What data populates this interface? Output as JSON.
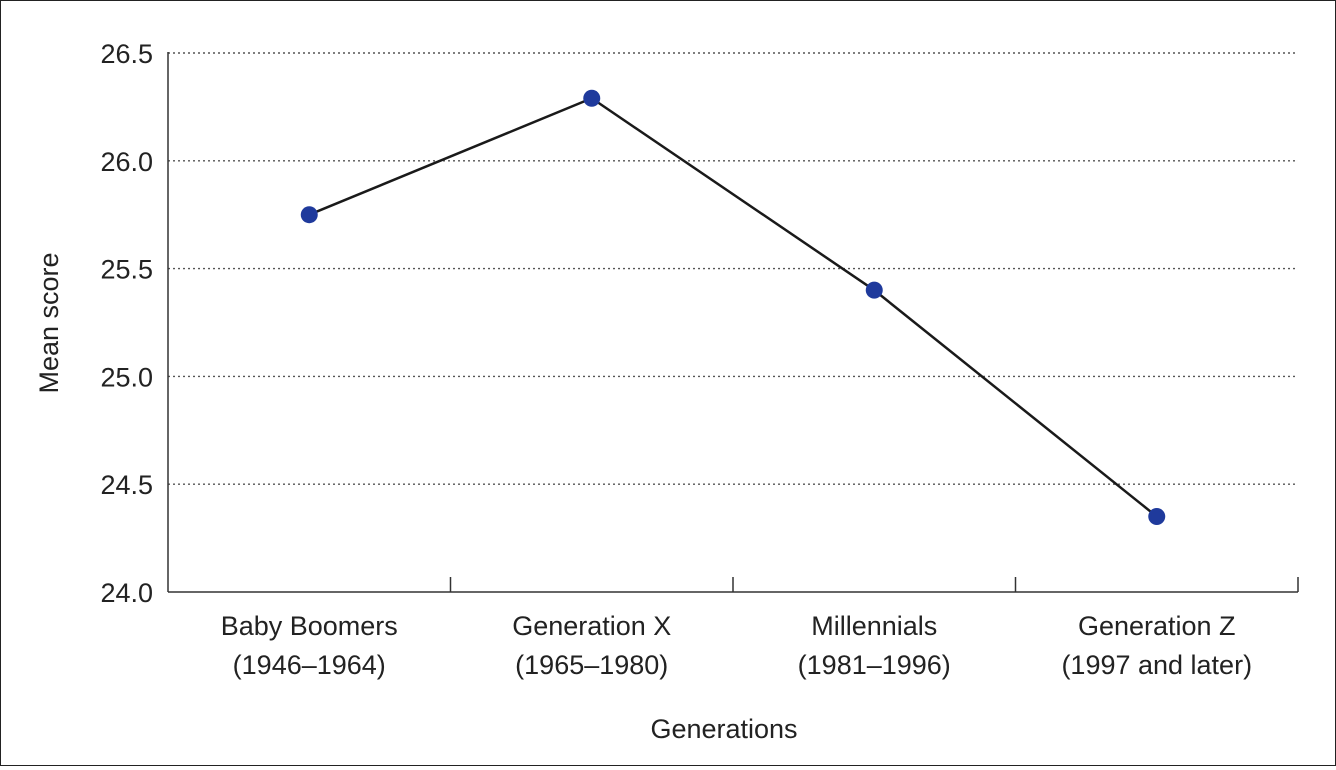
{
  "chart_data": {
    "type": "line",
    "title": "",
    "xlabel": "Generations",
    "ylabel": "Mean score",
    "categories": [
      {
        "line1": "Baby Boomers",
        "line2": "(1946–1964)"
      },
      {
        "line1": "Generation X",
        "line2": "(1965–1980)"
      },
      {
        "line1": "Millennials",
        "line2": "(1981–1996)"
      },
      {
        "line1": "Generation Z",
        "line2": "(1997 and later)"
      }
    ],
    "series": [
      {
        "values": [
          25.75,
          26.29,
          25.4,
          24.35
        ]
      }
    ],
    "ylim": [
      24.0,
      26.5
    ],
    "yticks": [
      "24.0",
      "24.5",
      "25.0",
      "25.5",
      "26.0",
      "26.5"
    ],
    "grid": "horizontal-dotted",
    "colors": {
      "line": "#1a1a1a",
      "marker": "#1f3a9c",
      "axis": "#333333",
      "grid": "#555555"
    }
  }
}
